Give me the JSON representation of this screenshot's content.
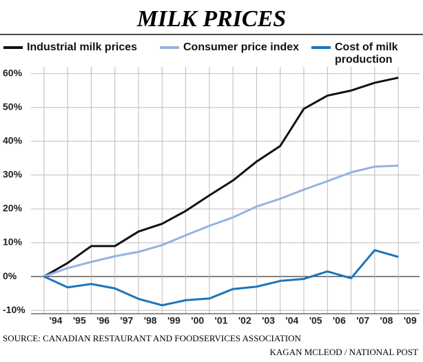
{
  "chart_data": {
    "type": "line",
    "title": "MILK PRICES",
    "x": [
      1994,
      1995,
      1996,
      1997,
      1998,
      1999,
      2000,
      2001,
      2002,
      2003,
      2004,
      2005,
      2006,
      2007,
      2008,
      2009
    ],
    "series": [
      {
        "name": "Industrial milk prices",
        "color": "#111111",
        "values": [
          0,
          4,
          9,
          9,
          13.3,
          15.6,
          19.4,
          24,
          28.4,
          34,
          38.6,
          49.6,
          53.5,
          55,
          57.3,
          58.8
        ]
      },
      {
        "name": "Consumer price index",
        "color": "#94b3dd",
        "values": [
          0,
          2.5,
          4.3,
          6,
          7.3,
          9.3,
          12.2,
          15,
          17.5,
          20.7,
          23,
          25.7,
          28.2,
          30.8,
          32.5,
          32.8
        ]
      },
      {
        "name": "Cost of milk production",
        "color": "#1a75bb",
        "values": [
          0,
          -3.2,
          -2.2,
          -3.5,
          -6.6,
          -8.5,
          -7,
          -6.5,
          -3.7,
          -3,
          -1.3,
          -0.7,
          1.5,
          -0.5,
          7.8,
          5.8
        ]
      }
    ],
    "xlim": [
      1993.45,
      2009.9
    ],
    "ylim": [
      -11,
      62
    ],
    "xticks": [
      {
        "value": 1994,
        "label": "'94"
      },
      {
        "value": 1995,
        "label": "'95"
      },
      {
        "value": 1996,
        "label": "'96"
      },
      {
        "value": 1997,
        "label": "'97"
      },
      {
        "value": 1998,
        "label": "'98"
      },
      {
        "value": 1999,
        "label": "'99"
      },
      {
        "value": 2000,
        "label": "'00"
      },
      {
        "value": 2001,
        "label": "'01"
      },
      {
        "value": 2002,
        "label": "'02"
      },
      {
        "value": 2003,
        "label": "'03"
      },
      {
        "value": 2004,
        "label": "'04"
      },
      {
        "value": 2005,
        "label": "'05"
      },
      {
        "value": 2006,
        "label": "'06"
      },
      {
        "value": 2007,
        "label": "'07"
      },
      {
        "value": 2008,
        "label": "'08"
      },
      {
        "value": 2009,
        "label": "'09"
      }
    ],
    "yticks": [
      {
        "value": -10,
        "label": "-10%"
      },
      {
        "value": 0,
        "label": "0%"
      },
      {
        "value": 10,
        "label": "10%"
      },
      {
        "value": 20,
        "label": "20%"
      },
      {
        "value": 30,
        "label": "30%"
      },
      {
        "value": 40,
        "label": "40%"
      },
      {
        "value": 50,
        "label": "50%"
      },
      {
        "value": 60,
        "label": "60%"
      }
    ],
    "grid": true,
    "source": "SOURCE: CANADIAN RESTAURANT AND FOODSERVICES ASSOCIATION",
    "credit": "KAGAN MCLEOD / NATIONAL POST"
  }
}
